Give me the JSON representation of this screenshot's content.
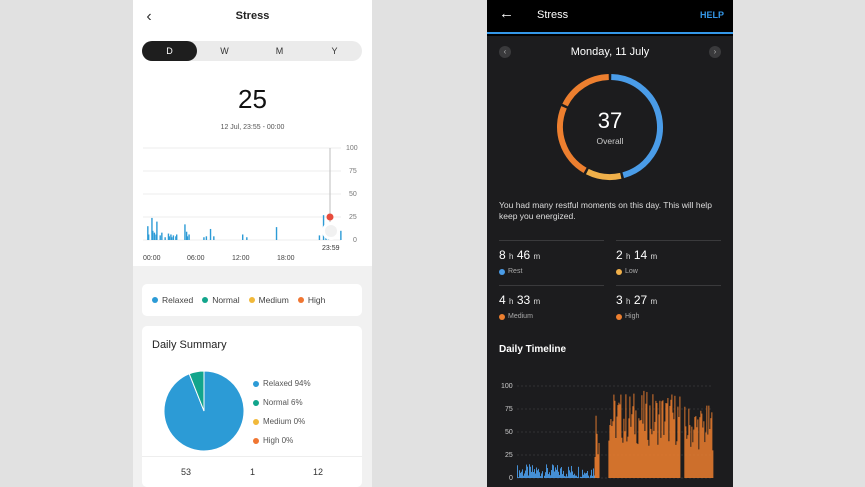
{
  "left_app": {
    "header": {
      "back_icon": "chevron-left-icon",
      "title": "Stress"
    },
    "period_tabs": [
      "D",
      "W",
      "M",
      "Y"
    ],
    "active_tab": "D",
    "current_value": "25",
    "time_range": "12 Jul, 23:55 - 00:00",
    "chart_data": {
      "type": "bar",
      "title": "",
      "x_tick_labels": [
        "00:00",
        "06:00",
        "12:00",
        "18:00"
      ],
      "y_tick_labels": [
        "100",
        "75",
        "50",
        "25",
        "0"
      ],
      "ylim": [
        0,
        100
      ],
      "cursor_label": "23:59",
      "cursor_value": 25,
      "bars_hours": [
        0.5,
        0.6,
        1.0,
        1.1,
        1.3,
        1.5,
        1.6,
        2.0,
        2.2,
        2.6,
        3.0,
        3.1,
        3.3,
        3.4,
        3.6,
        3.9,
        4.0,
        5.0,
        5.2,
        5.3,
        5.5,
        7.3,
        7.6,
        8.1,
        8.5,
        12.0,
        12.5,
        16.1,
        21.3,
        21.8,
        22.1,
        22.4,
        23.9
      ],
      "bars_values": [
        15,
        6,
        24,
        10,
        8,
        6,
        20,
        5,
        8,
        3,
        7,
        4,
        6,
        3,
        5,
        4,
        6,
        17,
        9,
        4,
        6,
        3,
        4,
        12,
        4,
        6,
        3,
        14,
        5,
        27,
        7,
        4,
        10
      ],
      "series_color": "#2c9bd6",
      "grid": true
    },
    "legend": [
      {
        "label": "Relaxed",
        "color": "#2c9bd6"
      },
      {
        "label": "Normal",
        "color": "#12a58c"
      },
      {
        "label": "Medium",
        "color": "#f1b93a"
      },
      {
        "label": "High",
        "color": "#f07632"
      }
    ],
    "daily_summary": {
      "title": "Daily Summary",
      "items": [
        {
          "label": "Relaxed 94%",
          "value": 94,
          "color": "#2c9bd6"
        },
        {
          "label": "Normal 6%",
          "value": 6,
          "color": "#12a58c"
        },
        {
          "label": "Medium 0%",
          "value": 0,
          "color": "#f1b93a"
        },
        {
          "label": "High 0%",
          "value": 0,
          "color": "#f07632"
        }
      ],
      "counts": [
        "53",
        "1",
        "12"
      ]
    }
  },
  "right_app": {
    "header": {
      "back_icon": "arrow-left-icon",
      "title": "Stress",
      "help": "HELP"
    },
    "date": "Monday, 11 July",
    "prev_icon": "chevron-left-icon",
    "next_icon": "chevron-right-icon",
    "overall_value": "37",
    "overall_label": "Overall",
    "ring_segments": [
      {
        "name": "Rest",
        "minutes": 526,
        "color": "#4a9ce8"
      },
      {
        "name": "Low",
        "minutes": 134,
        "color": "#f0b04a"
      },
      {
        "name": "Medium",
        "minutes": 273,
        "color": "#ed7f2f"
      },
      {
        "name": "High",
        "minutes": 207,
        "color": "#ed7f2f"
      }
    ],
    "summary_text": "You had many restful moments on this day. This will help keep you energized.",
    "durations": [
      {
        "h": "8",
        "m": "46",
        "label": "Rest",
        "color": "#4a9ce8"
      },
      {
        "h": "2",
        "m": "14",
        "label": "Low",
        "color": "#f0b04a"
      },
      {
        "h": "4",
        "m": "33",
        "label": "Medium",
        "color": "#ed7f2f"
      },
      {
        "h": "3",
        "m": "27",
        "label": "High",
        "color": "#ed7f2f"
      }
    ],
    "unit_h": "h",
    "unit_m": "m",
    "timeline_title": "Daily Timeline",
    "chart_data": {
      "type": "bar",
      "title": "",
      "y_tick_labels": [
        "100",
        "75",
        "50",
        "25",
        "0"
      ],
      "ylim": [
        0,
        100
      ],
      "grid": true,
      "rest_color": "#4a9ce8",
      "stress_color": "#ed7f2f",
      "segments": [
        {
          "from_hour": 0,
          "to_hour": 9.5,
          "kind": "rest",
          "low": 0,
          "high": 15
        },
        {
          "from_hour": 9.5,
          "to_hour": 10.0,
          "kind": "stress",
          "low": 20,
          "high": 85
        },
        {
          "from_hour": 11.2,
          "to_hour": 20.0,
          "kind": "stress",
          "low": 35,
          "high": 95
        },
        {
          "from_hour": 20.5,
          "to_hour": 24.0,
          "kind": "stress",
          "low": 30,
          "high": 80
        }
      ]
    }
  }
}
